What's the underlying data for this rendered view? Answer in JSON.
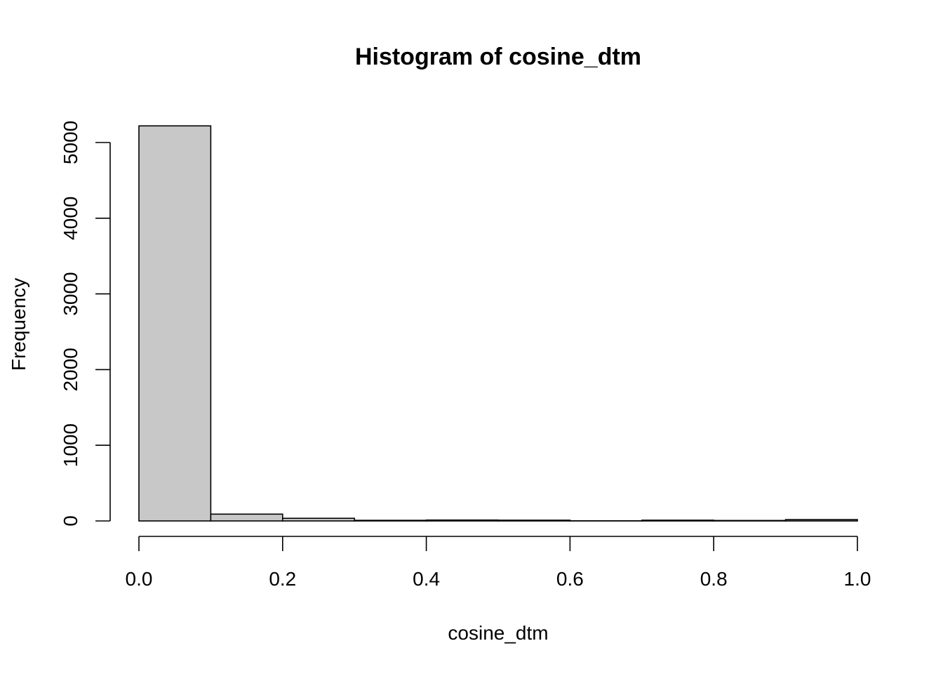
{
  "chart_data": {
    "type": "bar",
    "title": "Histogram of cosine_dtm",
    "xlabel": "cosine_dtm",
    "ylabel": "Frequency",
    "bins": [
      {
        "x0": 0.0,
        "x1": 0.1,
        "count": 5220
      },
      {
        "x0": 0.1,
        "x1": 0.2,
        "count": 90
      },
      {
        "x0": 0.2,
        "x1": 0.3,
        "count": 35
      },
      {
        "x0": 0.3,
        "x1": 0.4,
        "count": 8
      },
      {
        "x0": 0.4,
        "x1": 0.5,
        "count": 12
      },
      {
        "x0": 0.5,
        "x1": 0.6,
        "count": 10
      },
      {
        "x0": 0.6,
        "x1": 0.7,
        "count": 2
      },
      {
        "x0": 0.7,
        "x1": 0.8,
        "count": 10
      },
      {
        "x0": 0.8,
        "x1": 0.9,
        "count": 6
      },
      {
        "x0": 0.9,
        "x1": 1.0,
        "count": 18
      }
    ],
    "xlim": [
      0,
      1
    ],
    "ylim": [
      0,
      5220
    ],
    "xticks": [
      0.0,
      0.2,
      0.4,
      0.6,
      0.8,
      1.0
    ],
    "xtick_labels": [
      "0.0",
      "0.2",
      "0.4",
      "0.6",
      "0.8",
      "1.0"
    ],
    "yticks": [
      0,
      1000,
      2000,
      3000,
      4000,
      5000
    ],
    "ytick_labels": [
      "0",
      "1000",
      "2000",
      "3000",
      "4000",
      "5000"
    ],
    "grid": false,
    "bar_color": "#c8c8c8"
  }
}
